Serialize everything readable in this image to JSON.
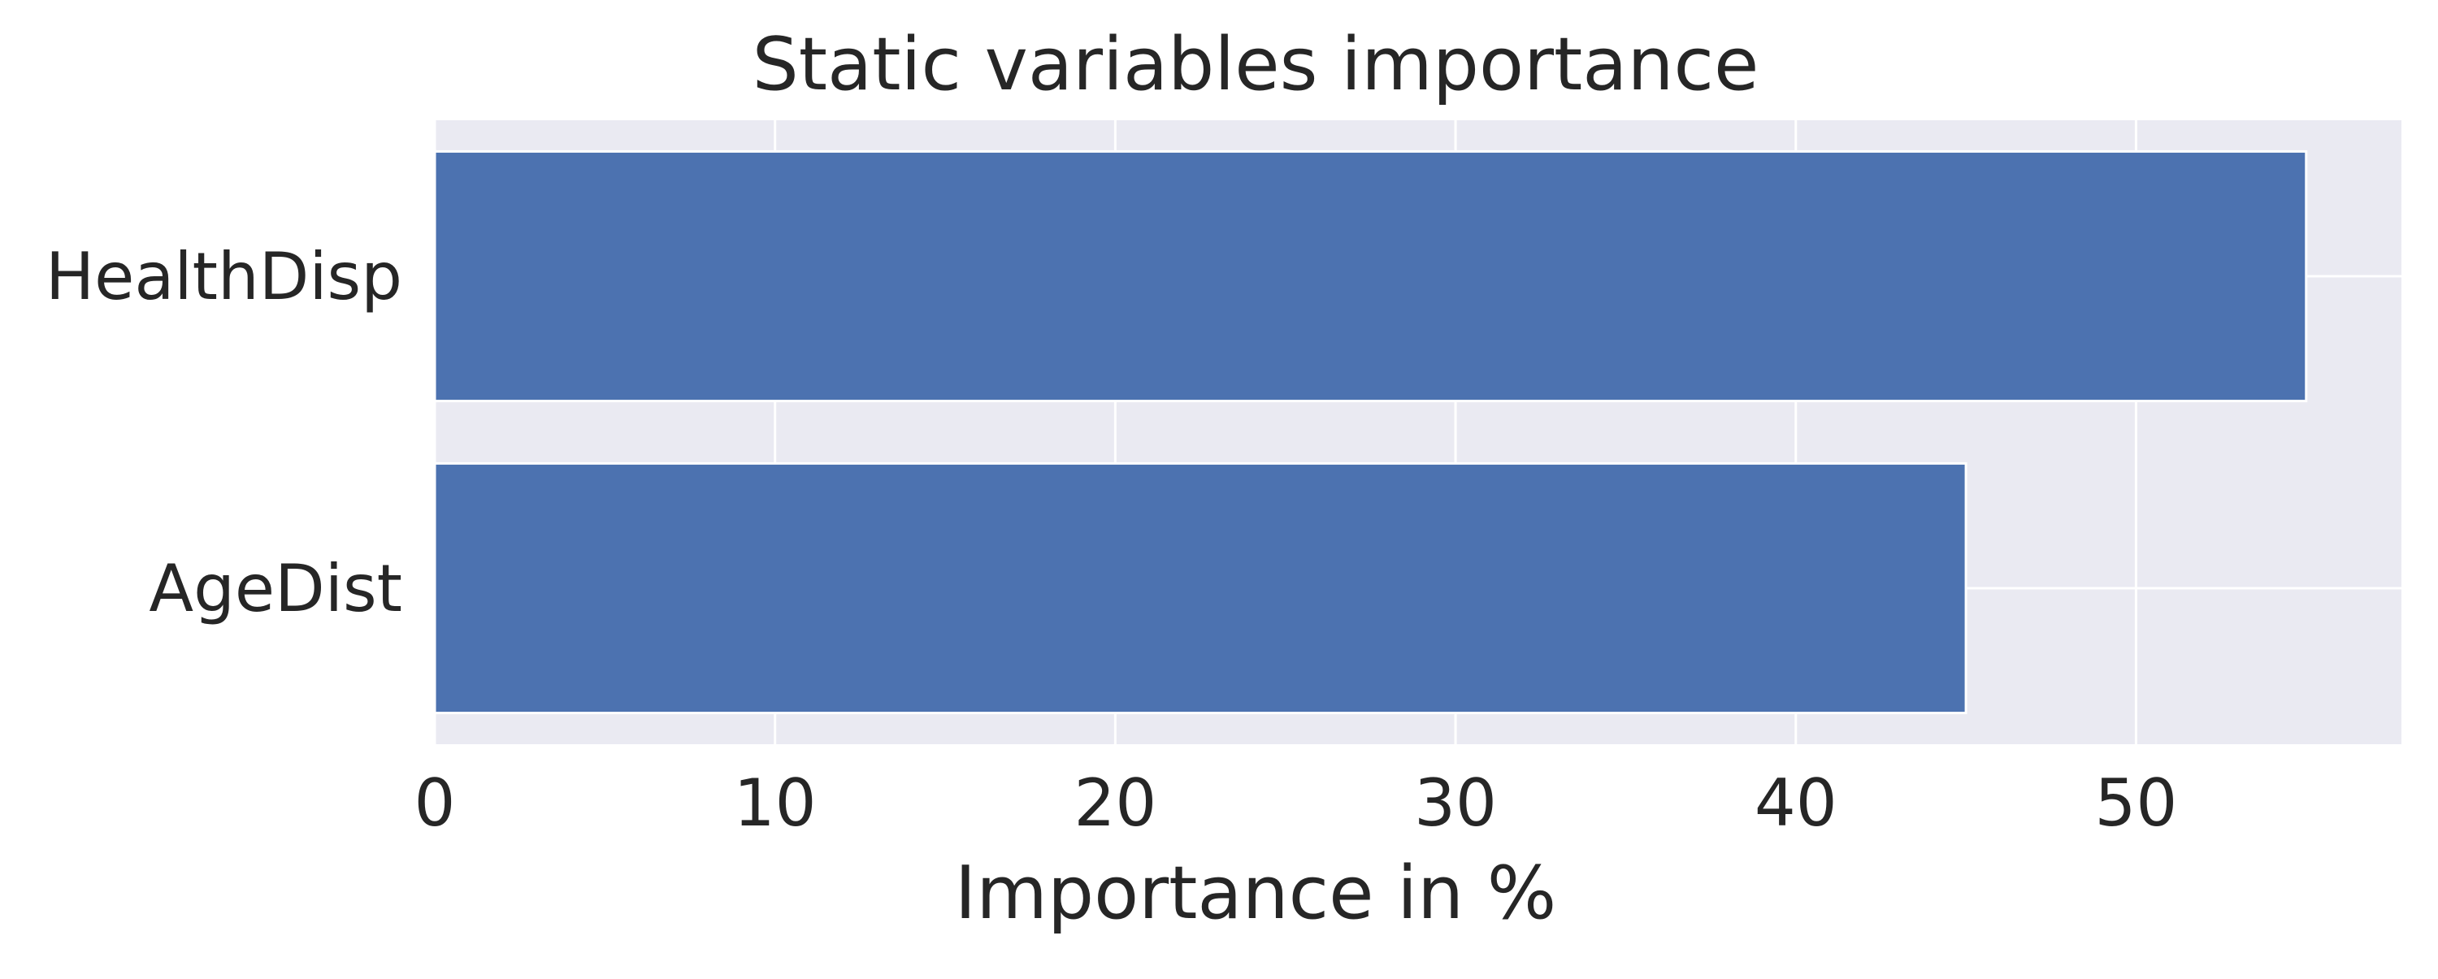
{
  "chart_data": {
    "type": "bar",
    "orientation": "horizontal",
    "title": "Static variables importance",
    "xlabel": "Importance in %",
    "ylabel": "",
    "categories": [
      "HealthDisp",
      "AgeDist"
    ],
    "values": [
      55.0,
      45.0
    ],
    "xlim": [
      0,
      57.8
    ],
    "xticks": [
      "0",
      "10",
      "20",
      "30",
      "40",
      "50"
    ],
    "grid": true,
    "legend": "none",
    "colors": {
      "bar": "#4c72b0",
      "plot_background": "#eaeaf2",
      "grid": "#ffffff",
      "text": "#262626"
    }
  }
}
